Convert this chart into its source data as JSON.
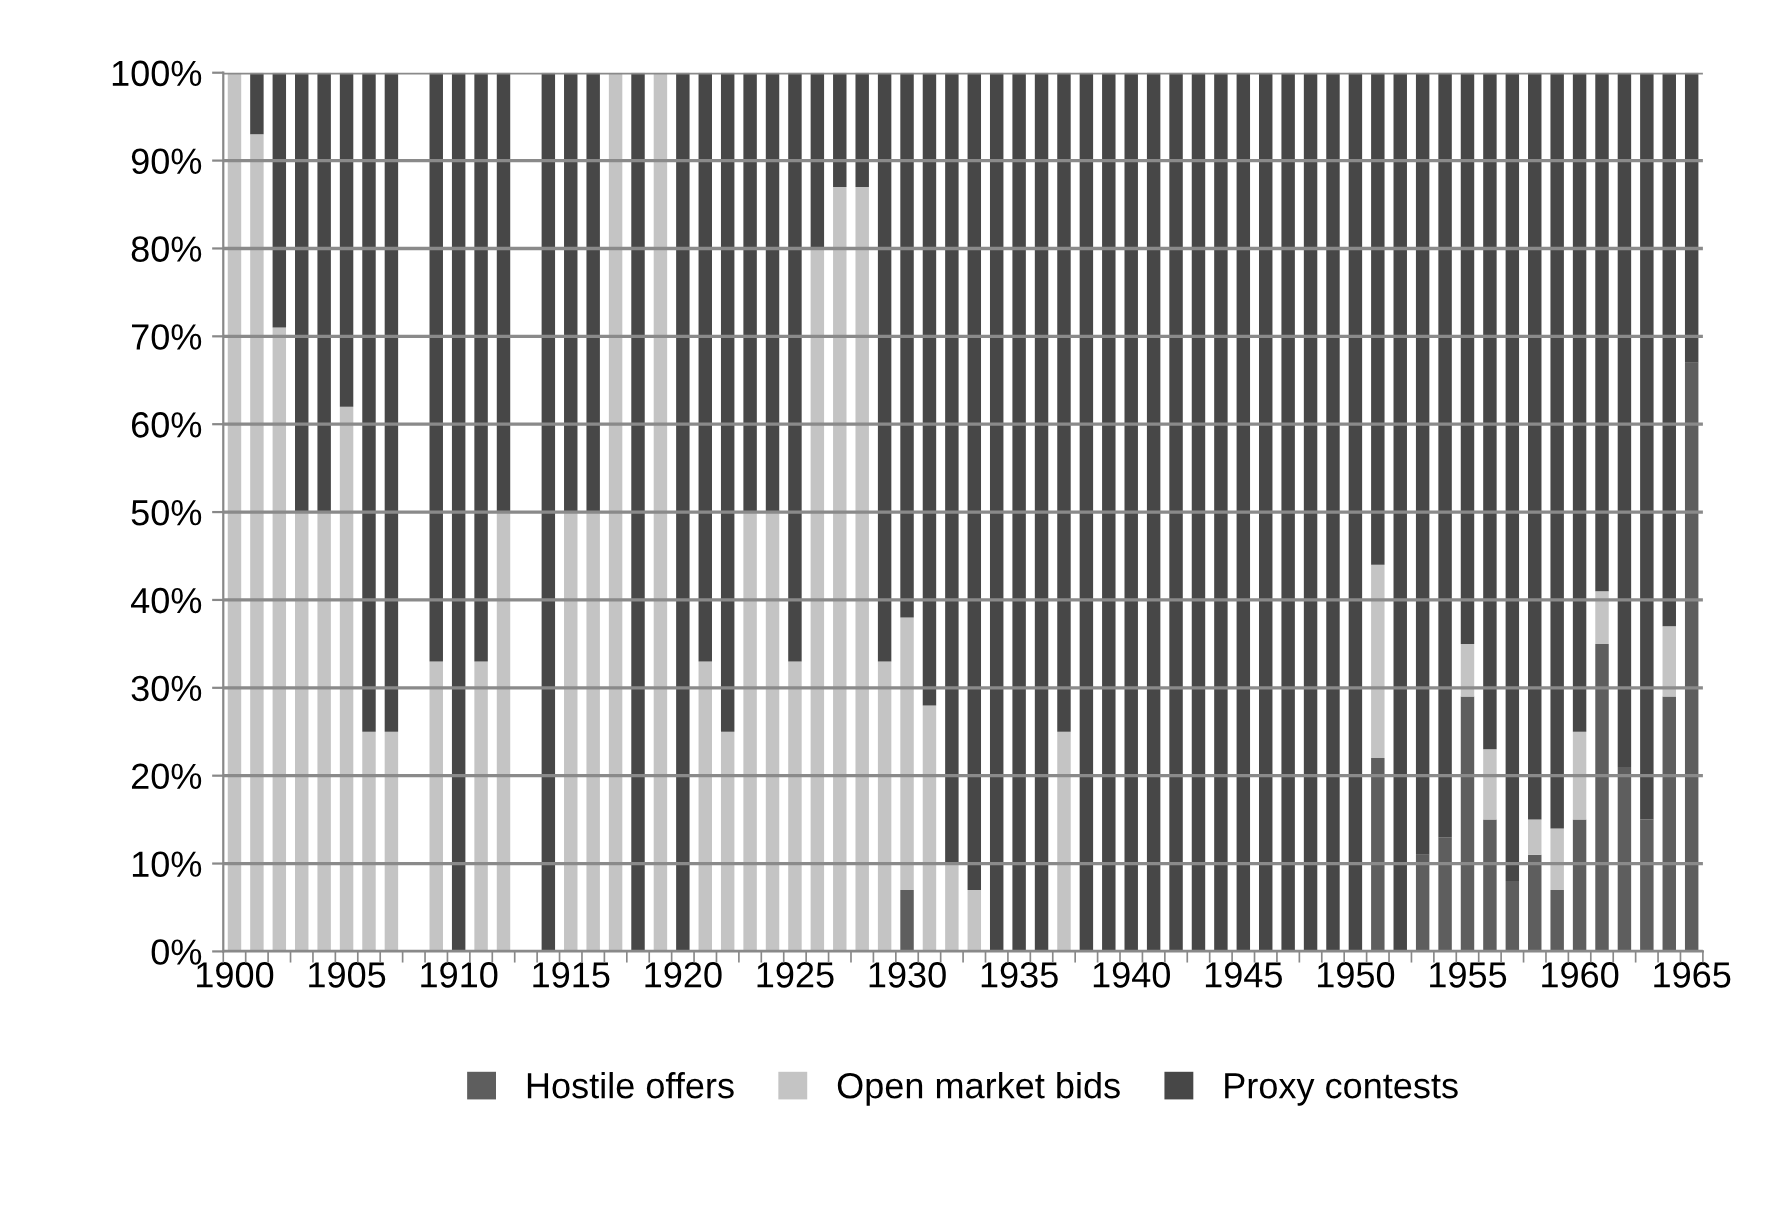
{
  "chart_data": {
    "type": "bar",
    "stacked": true,
    "categories": [
      "1900",
      null,
      null,
      null,
      null,
      "1905",
      null,
      null,
      null,
      null,
      "1910",
      null,
      null,
      null,
      null,
      "1915",
      null,
      null,
      null,
      null,
      "1920",
      null,
      null,
      null,
      null,
      "1925",
      null,
      null,
      null,
      null,
      "1930",
      null,
      null,
      null,
      null,
      "1935",
      null,
      null,
      null,
      null,
      "1940",
      null,
      null,
      null,
      null,
      "1945",
      null,
      null,
      null,
      null,
      "1950",
      null,
      null,
      null,
      null,
      "1955",
      null,
      null,
      null,
      null,
      "1960",
      null,
      null,
      null,
      null,
      "1965"
    ],
    "series": [
      {
        "name": "Hostile offers",
        "color": "#5e5e5e",
        "values": [
          0,
          0,
          0,
          0,
          0,
          0,
          0,
          0,
          null,
          0,
          0,
          0,
          0,
          null,
          0,
          0,
          0,
          0,
          0,
          0,
          0,
          0,
          0,
          0,
          0,
          0,
          0,
          0,
          0,
          0,
          7,
          0,
          0,
          0,
          0,
          0,
          0,
          0,
          0,
          0,
          0,
          0,
          0,
          0,
          0,
          0,
          0,
          0,
          0,
          0,
          0,
          22,
          0,
          11,
          13,
          29,
          15,
          8,
          11,
          7,
          15,
          35,
          21,
          15,
          29,
          67
        ]
      },
      {
        "name": "Open market bids",
        "color": "#c4c4c4",
        "values": [
          100,
          93,
          71,
          50,
          50,
          62,
          25,
          25,
          null,
          33,
          0,
          33,
          50,
          null,
          0,
          50,
          50,
          100,
          0,
          100,
          0,
          33,
          25,
          50,
          50,
          33,
          80,
          87,
          87,
          33,
          31,
          28,
          10,
          7,
          0,
          0,
          0,
          25,
          0,
          0,
          0,
          0,
          0,
          0,
          0,
          0,
          0,
          0,
          0,
          0,
          0,
          22,
          0,
          0,
          0,
          6,
          8,
          0,
          4,
          7,
          10,
          6,
          0,
          0,
          8,
          0
        ]
      },
      {
        "name": "Proxy contests",
        "color": "#474747",
        "values": [
          0,
          7,
          29,
          50,
          50,
          38,
          75,
          75,
          null,
          67,
          100,
          67,
          50,
          null,
          100,
          50,
          50,
          0,
          100,
          0,
          100,
          67,
          75,
          50,
          50,
          67,
          20,
          13,
          13,
          67,
          62,
          72,
          90,
          93,
          100,
          100,
          100,
          75,
          100,
          100,
          100,
          100,
          100,
          100,
          100,
          100,
          100,
          100,
          100,
          100,
          100,
          56,
          100,
          89,
          87,
          65,
          77,
          92,
          85,
          86,
          75,
          59,
          79,
          85,
          63,
          33
        ]
      }
    ],
    "ylim": [
      0,
      100
    ],
    "yticks": [
      {
        "value": 0,
        "label": "0%"
      },
      {
        "value": 10,
        "label": "10%"
      },
      {
        "value": 20,
        "label": "20%"
      },
      {
        "value": 30,
        "label": "30%"
      },
      {
        "value": 40,
        "label": "40%"
      },
      {
        "value": 50,
        "label": "50%"
      },
      {
        "value": 60,
        "label": "60%"
      },
      {
        "value": 70,
        "label": "70%"
      },
      {
        "value": 80,
        "label": "80%"
      },
      {
        "value": 90,
        "label": "90%"
      },
      {
        "value": 100,
        "label": "100%"
      }
    ],
    "grid": "y",
    "legend": "bottom"
  }
}
